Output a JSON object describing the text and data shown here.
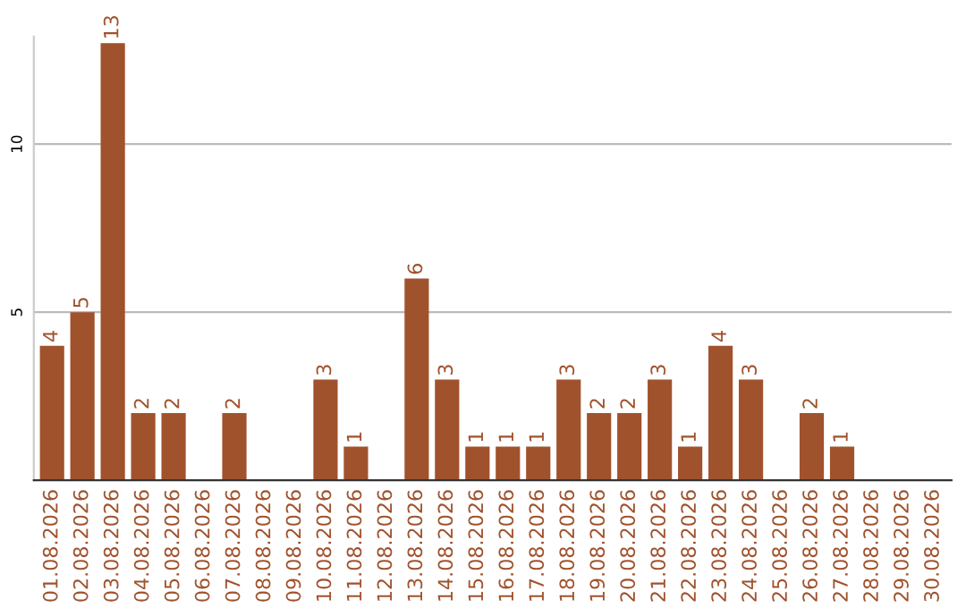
{
  "chart_data": {
    "type": "bar",
    "categories": [
      "01.08.2026",
      "02.08.2026",
      "03.08.2026",
      "04.08.2026",
      "05.08.2026",
      "06.08.2026",
      "07.08.2026",
      "08.08.2026",
      "09.08.2026",
      "10.08.2026",
      "11.08.2026",
      "12.08.2026",
      "13.08.2026",
      "14.08.2026",
      "15.08.2026",
      "16.08.2026",
      "17.08.2026",
      "18.08.2026",
      "19.08.2026",
      "20.08.2026",
      "21.08.2026",
      "22.08.2026",
      "23.08.2026",
      "24.08.2026",
      "25.08.2026",
      "26.08.2026",
      "27.08.2026",
      "28.08.2026",
      "29.08.2026",
      "30.08.2026"
    ],
    "values": [
      4,
      5,
      13,
      2,
      2,
      0,
      2,
      0,
      0,
      3,
      1,
      0,
      6,
      3,
      1,
      1,
      1,
      3,
      2,
      2,
      3,
      1,
      4,
      3,
      0,
      2,
      1,
      0,
      0,
      0
    ],
    "value_labels": [
      "4",
      "5",
      "13",
      "2",
      "2",
      null,
      "2",
      null,
      null,
      "3",
      "1",
      null,
      "6",
      "3",
      "1",
      "1",
      "1",
      "3",
      "2",
      "2",
      "3",
      "1",
      "4",
      "3",
      null,
      "2",
      "1",
      null,
      null,
      null
    ],
    "color": "#a0522d",
    "ylim": [
      0,
      13.2
    ],
    "yticks": [
      5,
      10
    ],
    "grid": "y",
    "legend": false
  }
}
